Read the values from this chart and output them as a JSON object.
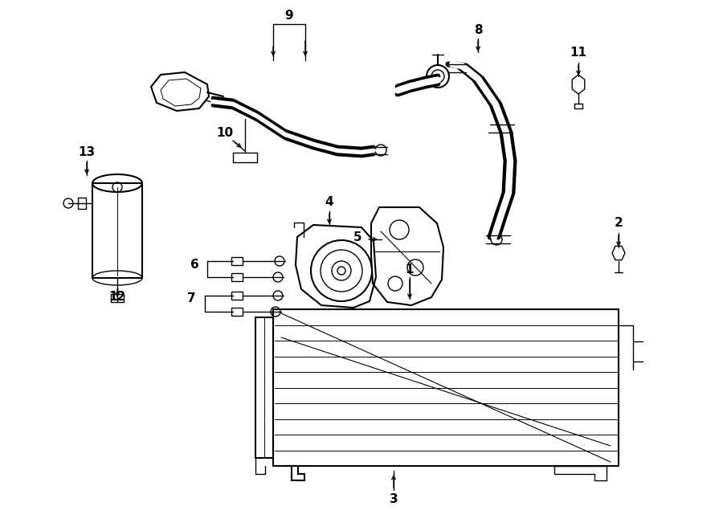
{
  "bg_color": "#ffffff",
  "line_color": "#000000",
  "figsize": [
    9.0,
    6.61
  ],
  "dpi": 100,
  "lw": 1.0,
  "label_fontsize": 11
}
